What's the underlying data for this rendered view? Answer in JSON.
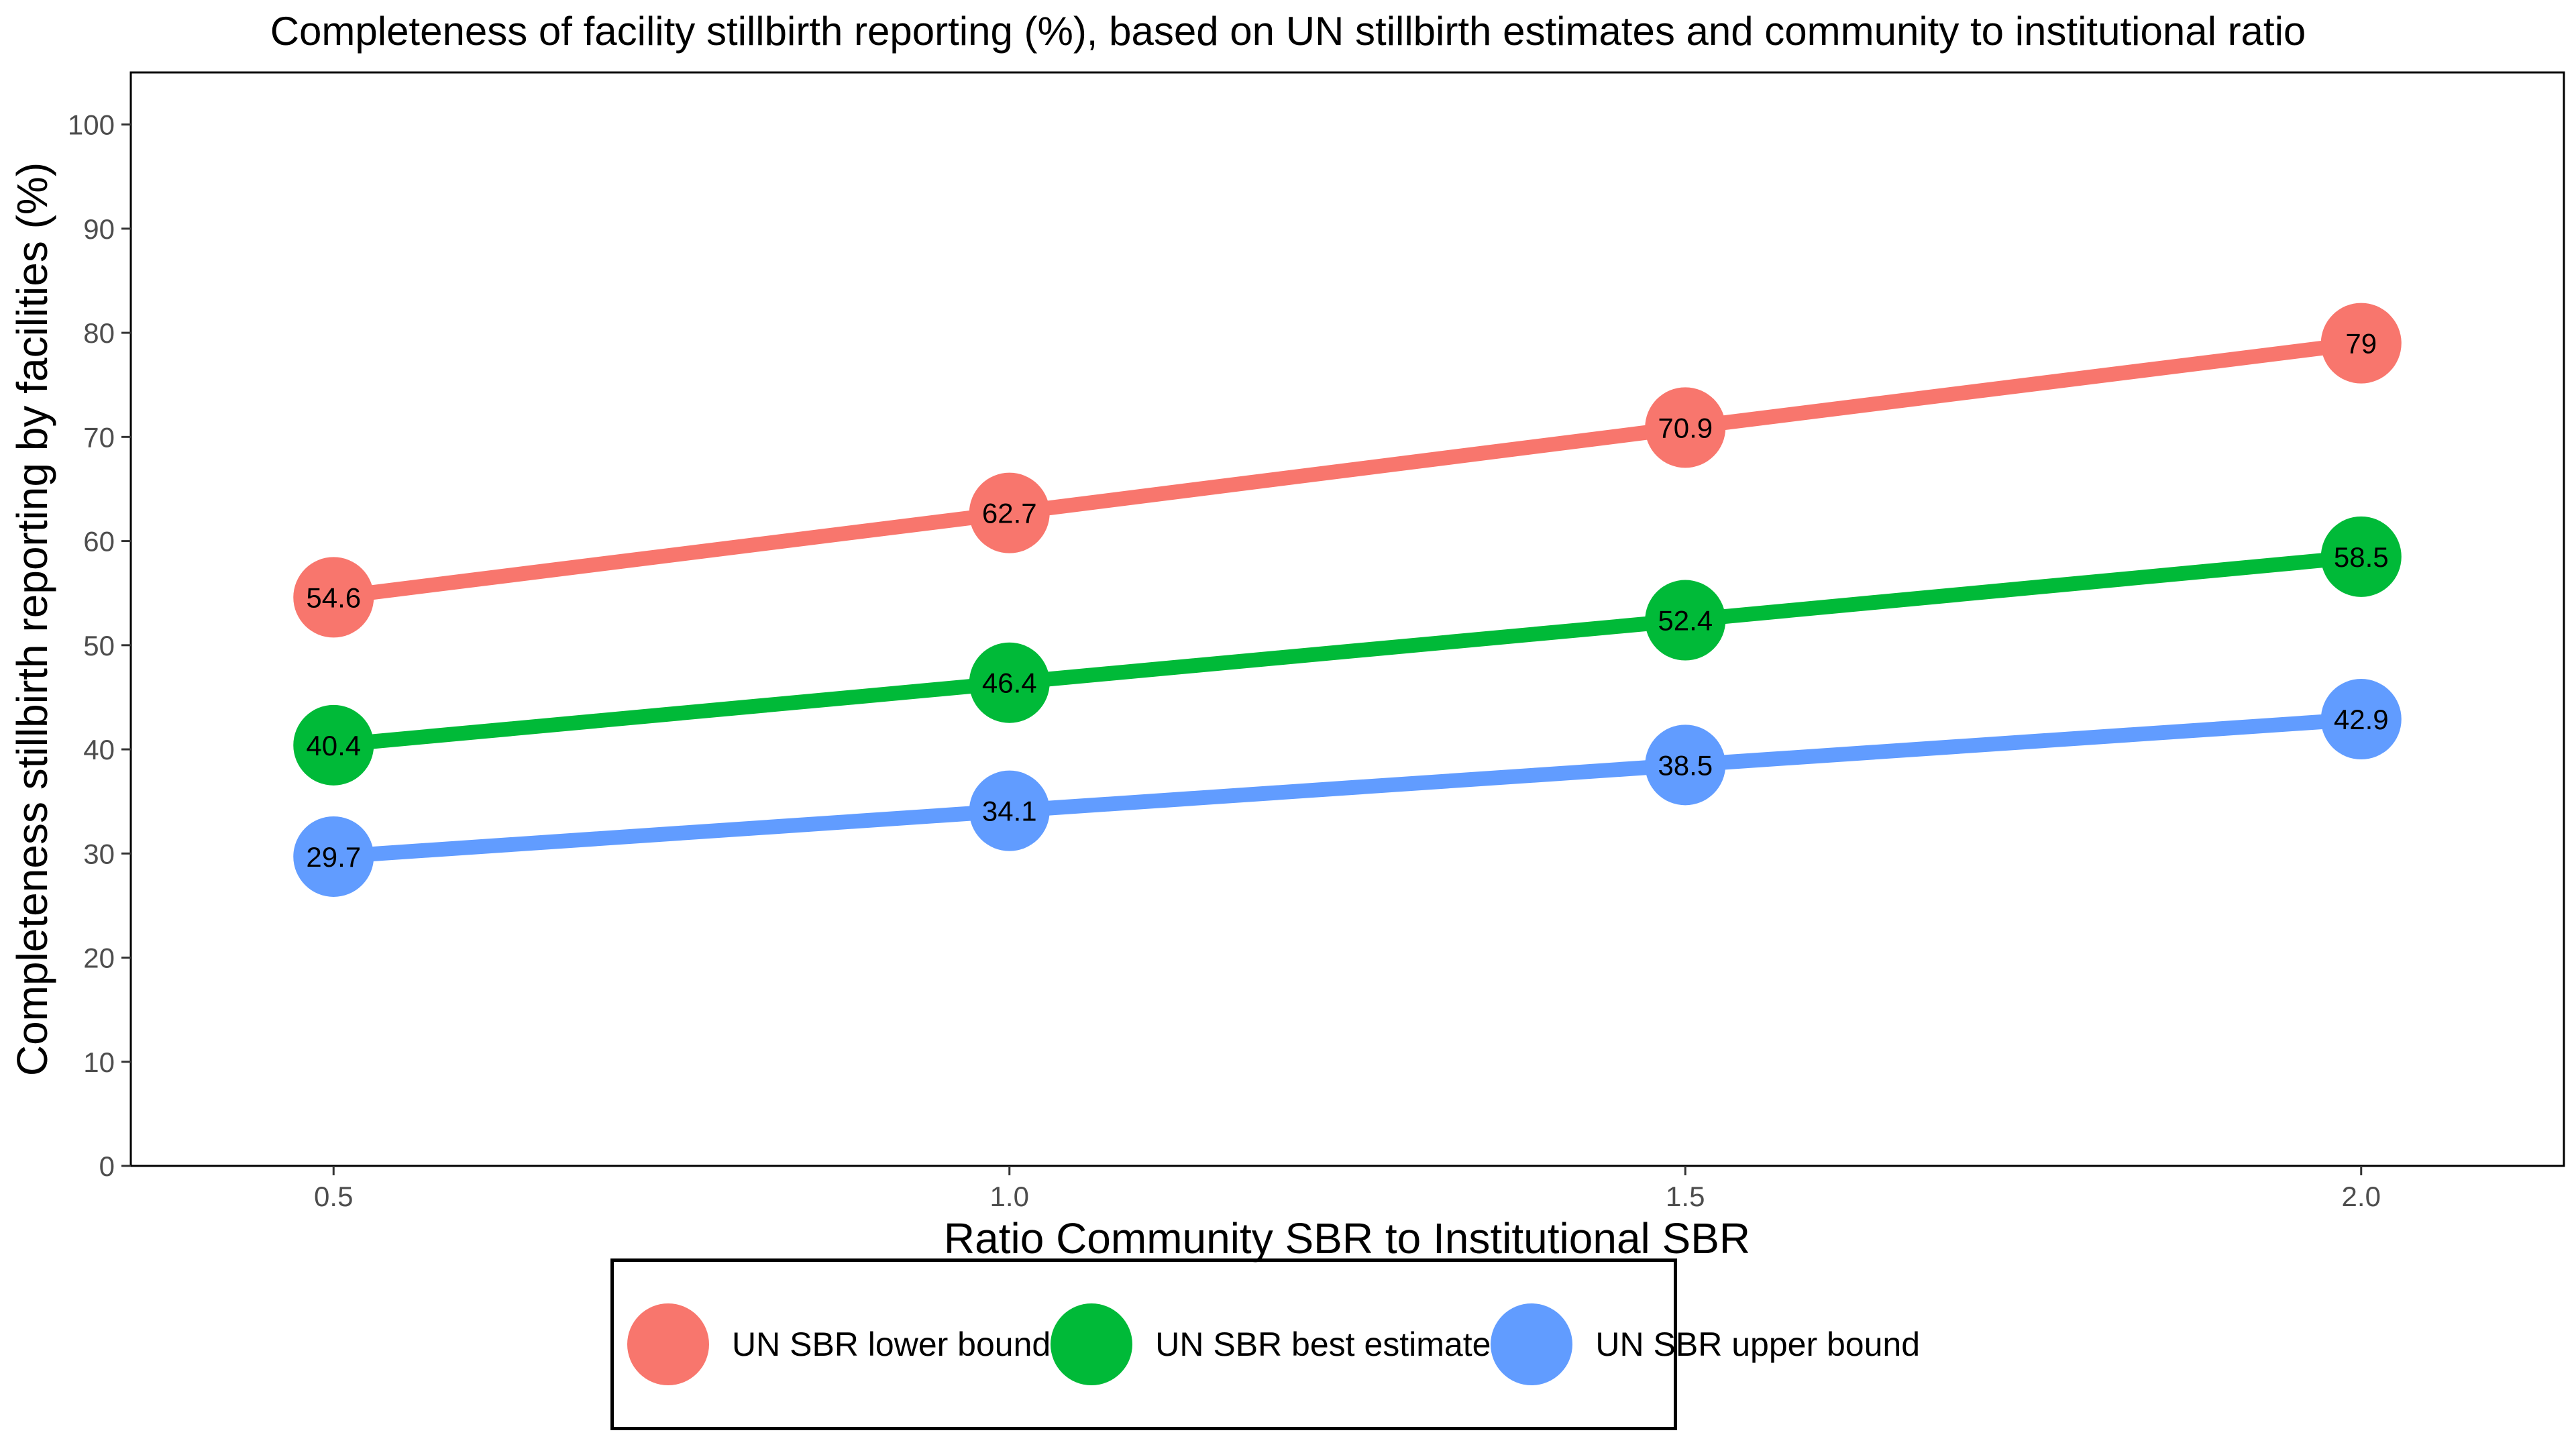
{
  "chart_data": {
    "type": "line",
    "title": "Completeness of facility stillbirth reporting (%), based on UN stillbirth estimates and community to institutional ratio",
    "xlabel": "Ratio Community SBR to Institutional SBR",
    "ylabel": "Completeness stillbirth reporting by facilities (%)",
    "x": [
      0.5,
      1.0,
      1.5,
      2.0
    ],
    "x_tick_labels": [
      "0.5",
      "1.0",
      "1.5",
      "2.0"
    ],
    "xlim": [
      0.35,
      2.15
    ],
    "ylim": [
      0,
      105
    ],
    "y_ticks": [
      0,
      10,
      20,
      30,
      40,
      50,
      60,
      70,
      80,
      90,
      100
    ],
    "y_tick_labels": [
      "0",
      "10",
      "20",
      "30",
      "40",
      "50",
      "60",
      "70",
      "80",
      "90",
      "100"
    ],
    "grid": false,
    "legend_position": "bottom",
    "series": [
      {
        "name": "UN SBR lower bound",
        "color": "#F8766D",
        "values": [
          54.6,
          62.7,
          70.9,
          79
        ],
        "labels": [
          "54.6",
          "62.7",
          "70.9",
          "79"
        ]
      },
      {
        "name": "UN SBR best estimate",
        "color": "#00BA38",
        "values": [
          40.4,
          46.4,
          52.4,
          58.5
        ],
        "labels": [
          "40.4",
          "46.4",
          "52.4",
          "58.5"
        ]
      },
      {
        "name": "UN SBR upper bound",
        "color": "#619CFF",
        "values": [
          29.7,
          34.1,
          38.5,
          42.9
        ],
        "labels": [
          "29.7",
          "34.1",
          "38.5",
          "42.9"
        ]
      }
    ]
  }
}
